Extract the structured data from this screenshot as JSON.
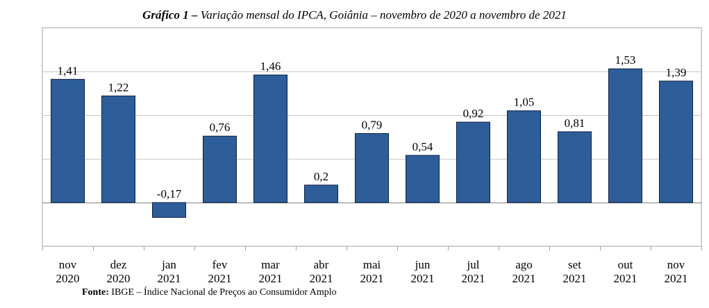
{
  "title_prefix": "Gráfico 1 –",
  "title_text": "Variação mensal do IPCA, Goiânia – novembro de 2020 a novembro de 2021",
  "source_label": "Fonte:",
  "source_text": "IBGE – Índice Nacional de Preços ao Consumidor Amplo",
  "colors": {
    "bar": "#2e5e9a",
    "bar_stroke": "#0b1f3f",
    "grid": "#c8c8c8",
    "frame": "#a0a0a0"
  },
  "chart_data": {
    "type": "bar",
    "title": "Gráfico 1 – Variação mensal do IPCA, Goiânia – novembro de 2020 a novembro de 2021",
    "categories": [
      [
        "nov",
        "2020"
      ],
      [
        "dez",
        "2020"
      ],
      [
        "jan",
        "2021"
      ],
      [
        "fev",
        "2021"
      ],
      [
        "mar",
        "2021"
      ],
      [
        "abr",
        "2021"
      ],
      [
        "mai",
        "2021"
      ],
      [
        "jun",
        "2021"
      ],
      [
        "jul",
        "2021"
      ],
      [
        "ago",
        "2021"
      ],
      [
        "set",
        "2021"
      ],
      [
        "out",
        "2021"
      ],
      [
        "nov",
        "2021"
      ]
    ],
    "values": [
      1.41,
      1.22,
      -0.17,
      0.76,
      1.46,
      0.2,
      0.79,
      0.54,
      0.92,
      1.05,
      0.81,
      1.53,
      1.39
    ],
    "value_labels": [
      "1,41",
      "1,22",
      "-0,17",
      "0,76",
      "1,46",
      "0,2",
      "0,79",
      "0,54",
      "0,92",
      "1,05",
      "0,81",
      "1,53",
      "1,39"
    ],
    "ylim": [
      -0.5,
      2.0
    ],
    "grid_step": 0.5,
    "grid": true,
    "legend": "none",
    "xlabel": "",
    "ylabel": ""
  }
}
